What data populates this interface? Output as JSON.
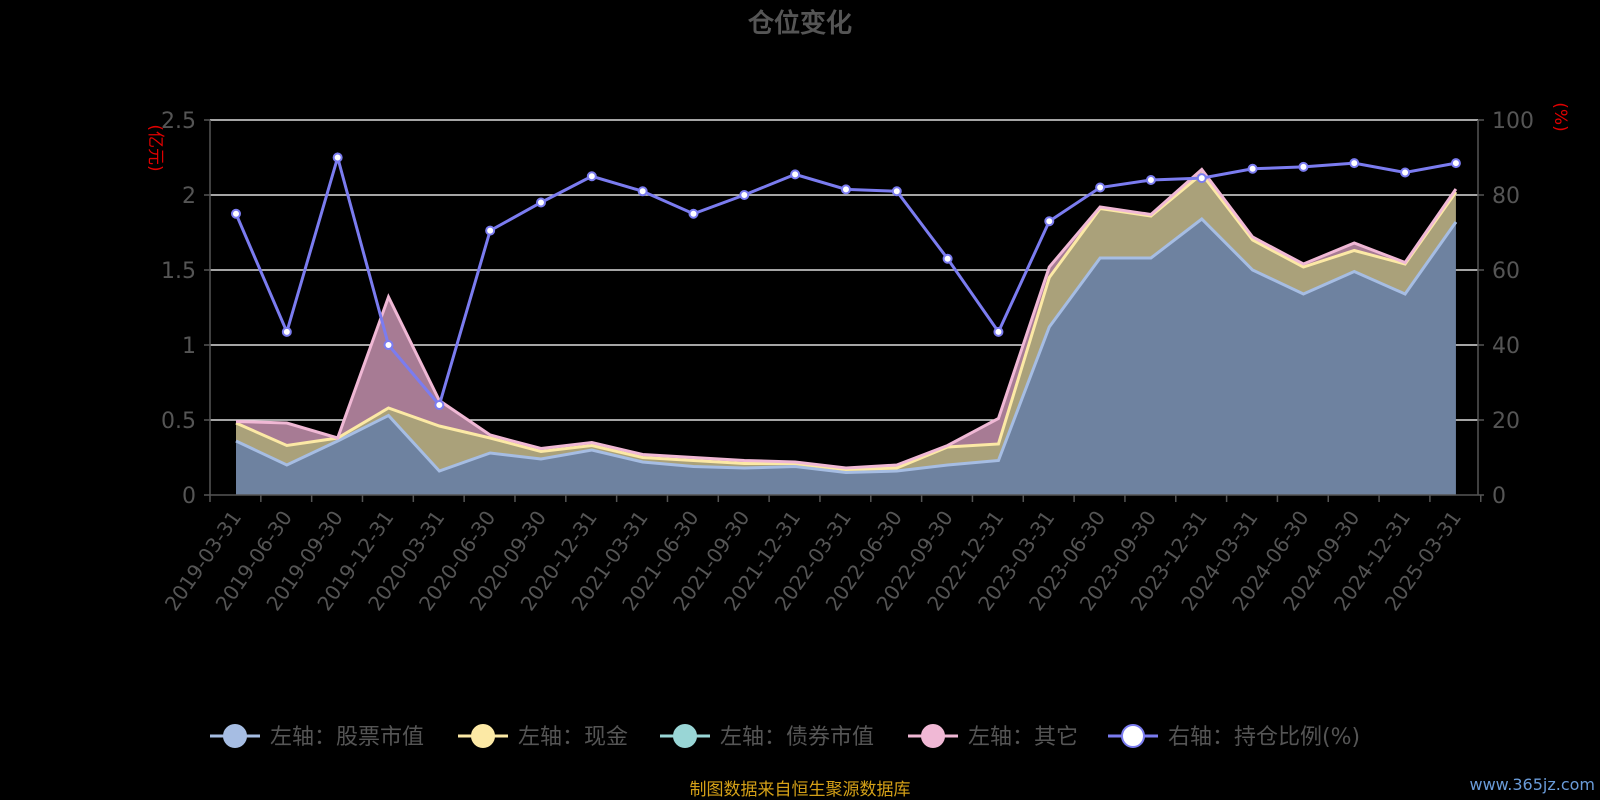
{
  "chart_data": {
    "type": "area",
    "title": "仓位变化",
    "left_axis_unit": "(亿元)",
    "right_axis_unit": "(%)",
    "ylim_left": [
      0,
      2.5
    ],
    "yticks_left": [
      "0",
      "0.5",
      "1",
      "1.5",
      "2",
      "2.5"
    ],
    "ylim_right": [
      0,
      100
    ],
    "yticks_right": [
      "0",
      "20",
      "40",
      "60",
      "80",
      "100"
    ],
    "grid": true,
    "legend_position": "bottom",
    "categories": [
      "2019-03-31",
      "2019-06-30",
      "2019-09-30",
      "2019-12-31",
      "2020-03-31",
      "2020-06-30",
      "2020-09-30",
      "2020-12-31",
      "2021-03-31",
      "2021-06-30",
      "2021-09-30",
      "2021-12-31",
      "2022-03-31",
      "2022-06-30",
      "2022-09-30",
      "2022-12-31",
      "2023-03-31",
      "2023-06-30",
      "2023-09-30",
      "2023-12-31",
      "2024-03-31",
      "2024-06-30",
      "2024-09-30",
      "2024-12-31",
      "2025-03-31"
    ],
    "series": [
      {
        "name": "左轴：股票市值",
        "axis": "left",
        "color": "#a6bde3",
        "fill": "#6e82a0",
        "values": [
          0.36,
          0.2,
          0.36,
          0.53,
          0.16,
          0.28,
          0.24,
          0.3,
          0.22,
          0.19,
          0.18,
          0.19,
          0.15,
          0.16,
          0.2,
          0.23,
          1.12,
          1.58,
          1.58,
          1.84,
          1.5,
          1.34,
          1.49,
          1.34,
          1.82
        ]
      },
      {
        "name": "左轴：现金",
        "axis": "left",
        "color": "#fce9a5",
        "fill": "#aaa17a",
        "values": [
          0.12,
          0.13,
          0.02,
          0.05,
          0.3,
          0.1,
          0.05,
          0.03,
          0.03,
          0.04,
          0.03,
          0.02,
          0.02,
          0.02,
          0.12,
          0.11,
          0.33,
          0.33,
          0.28,
          0.3,
          0.2,
          0.18,
          0.14,
          0.2,
          0.2
        ]
      },
      {
        "name": "左轴：债券市值",
        "axis": "left",
        "color": "#99d6d6",
        "values": [
          0,
          0,
          0,
          0,
          0,
          0,
          0,
          0,
          0,
          0,
          0,
          0,
          0,
          0,
          0,
          0,
          0,
          0,
          0,
          0,
          0,
          0,
          0,
          0,
          0
        ]
      },
      {
        "name": "左轴：其它",
        "axis": "left",
        "color": "#f0b8d5",
        "fill": "#a77b94",
        "values": [
          0.01,
          0.15,
          0,
          0.74,
          0.17,
          0.02,
          0.02,
          0.02,
          0.02,
          0.02,
          0.02,
          0.01,
          0.01,
          0.02,
          0.01,
          0.17,
          0.07,
          0.01,
          0.01,
          0.03,
          0.02,
          0.02,
          0.05,
          0.01,
          0.02
        ]
      },
      {
        "name": "右轴：持仓比例(%)",
        "axis": "right",
        "color": "#7b7cf0",
        "values": [
          75,
          43.5,
          90,
          40,
          24,
          70.5,
          78,
          85,
          81,
          75,
          80,
          85.5,
          81.5,
          81,
          63,
          43.5,
          73,
          82,
          84,
          84.5,
          87,
          87.5,
          88.5,
          86,
          88.5
        ]
      }
    ]
  },
  "footer": "制图数据来自恒生聚源数据库",
  "watermark": "www.365jz.com"
}
